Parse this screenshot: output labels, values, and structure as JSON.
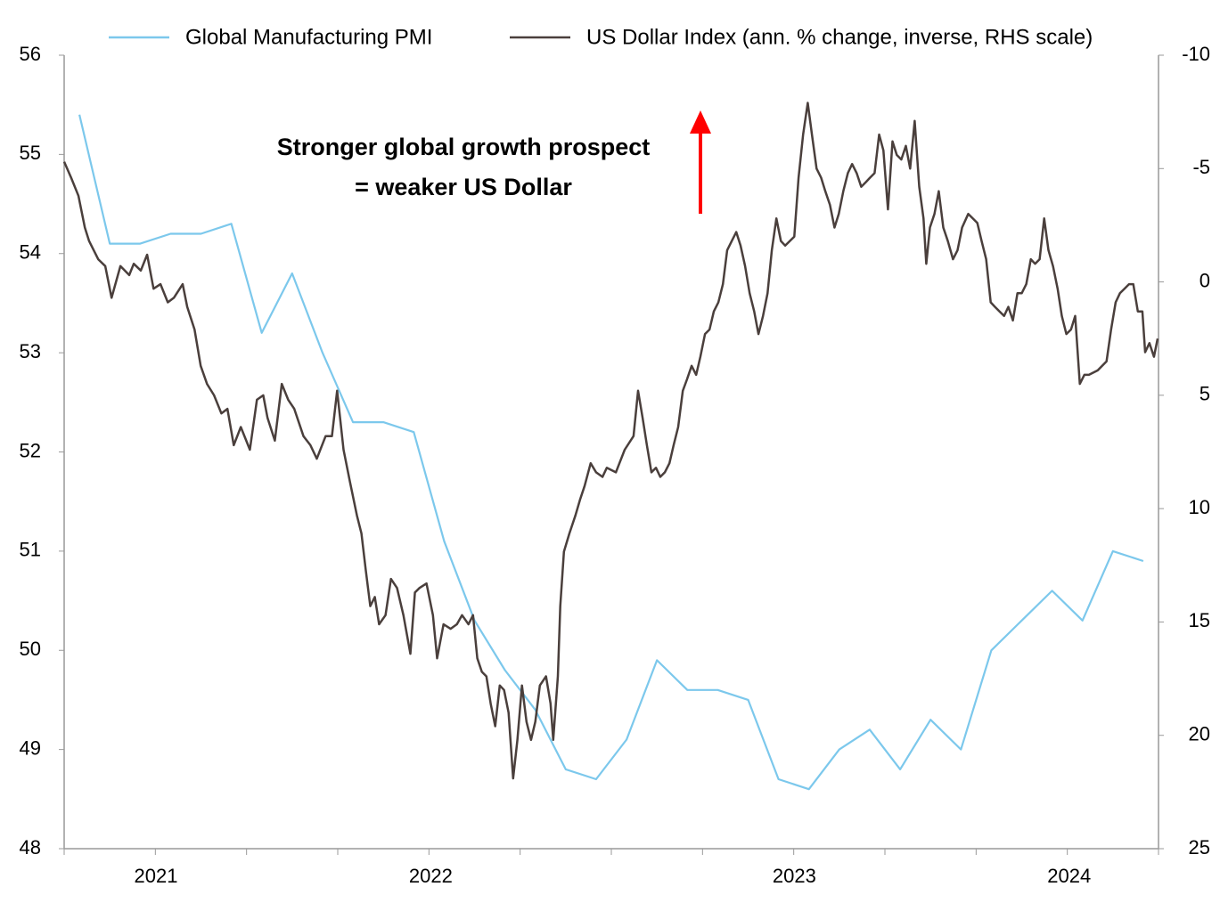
{
  "chart_data": {
    "type": "line",
    "annotations": [
      "Stronger global growth prospect",
      "= weaker US Dollar"
    ],
    "annotation_color": "#ff0000",
    "xlim": [
      0,
      36
    ],
    "xticks": [
      {
        "value": 3.02,
        "label": "2021"
      },
      {
        "value": 12.06,
        "label": "2022"
      },
      {
        "value": 24.02,
        "label": "2023"
      },
      {
        "value": 33.06,
        "label": "2024"
      }
    ],
    "xticks_minor": [
      0,
      3,
      6,
      9,
      12,
      15,
      18,
      21,
      24,
      27,
      30,
      33,
      36
    ],
    "ylim": [
      48,
      56
    ],
    "yticks": [
      48,
      49,
      50,
      51,
      52,
      53,
      54,
      55,
      56
    ],
    "y2lim": [
      25,
      -10
    ],
    "y2ticks": [
      -10,
      -5,
      0,
      5,
      10,
      15,
      20,
      25
    ],
    "legend": "top",
    "series": [
      {
        "name": "Global Manufacturing PMI",
        "color": "#7cc8ec",
        "x": [
          0.5,
          1.5,
          2.5,
          3.5,
          4.5,
          5.5,
          6.5,
          7.5,
          8.5,
          9.5,
          10.5,
          11.5,
          12.5,
          13.5,
          14.5,
          15.5,
          16.5,
          17.5,
          18.5,
          19.5,
          20.5,
          21.5,
          22.5,
          23.5,
          24.5,
          25.5,
          26.5,
          27.5,
          28.5,
          29.5,
          30.5,
          31.5,
          32.5,
          33.5,
          34.5,
          35.5
        ],
        "values": [
          55.4,
          54.1,
          54.1,
          54.2,
          54.2,
          54.3,
          53.2,
          53.8,
          53.0,
          52.3,
          52.3,
          52.2,
          51.1,
          50.3,
          49.8,
          49.4,
          48.8,
          48.7,
          49.1,
          49.9,
          49.6,
          49.6,
          49.5,
          48.7,
          48.6,
          49.0,
          49.2,
          48.8,
          49.3,
          49.0,
          50.0,
          50.3,
          50.6,
          50.3,
          51.0,
          50.9
        ]
      },
      {
        "name": "US Dollar Index (ann. % change, inverse, RHS scale)",
        "color": "#4a3f3c",
        "axis": "y2",
        "x": [
          0,
          0.23,
          0.47,
          0.68,
          0.82,
          1.12,
          1.35,
          1.56,
          1.85,
          2.14,
          2.29,
          2.52,
          2.73,
          2.94,
          3.17,
          3.41,
          3.61,
          3.9,
          4.05,
          4.29,
          4.49,
          4.7,
          4.93,
          5.17,
          5.37,
          5.58,
          5.81,
          6.11,
          6.34,
          6.55,
          6.69,
          6.93,
          7.16,
          7.37,
          7.57,
          7.87,
          8.1,
          8.31,
          8.6,
          8.81,
          8.98,
          9.19,
          9.4,
          9.63,
          9.78,
          9.92,
          10.07,
          10.22,
          10.36,
          10.57,
          10.75,
          10.95,
          11.16,
          11.39,
          11.54,
          11.69,
          11.92,
          12.13,
          12.27,
          12.48,
          12.71,
          12.92,
          13.09,
          13.3,
          13.45,
          13.59,
          13.74,
          13.89,
          14.03,
          14.18,
          14.33,
          14.47,
          14.62,
          14.77,
          14.91,
          15.06,
          15.21,
          15.36,
          15.5,
          15.65,
          15.85,
          16.0,
          16.09,
          16.24,
          16.32,
          16.44,
          16.62,
          16.82,
          16.97,
          17.12,
          17.32,
          17.5,
          17.71,
          17.85,
          18.15,
          18.44,
          18.73,
          18.88,
          19.03,
          19.17,
          19.32,
          19.47,
          19.61,
          19.76,
          19.91,
          20.05,
          20.2,
          20.35,
          20.49,
          20.64,
          20.79,
          20.93,
          21.08,
          21.23,
          21.37,
          21.52,
          21.67,
          21.81,
          21.96,
          22.11,
          22.25,
          22.4,
          22.55,
          22.7,
          22.84,
          22.99,
          23.14,
          23.28,
          23.43,
          23.58,
          23.72,
          23.87,
          24.02,
          24.16,
          24.31,
          24.46,
          24.6,
          24.75,
          24.9,
          25.04,
          25.19,
          25.34,
          25.48,
          25.63,
          25.78,
          25.92,
          26.07,
          26.22,
          26.37,
          26.51,
          26.66,
          26.81,
          26.95,
          27.1,
          27.25,
          27.39,
          27.54,
          27.69,
          27.83,
          27.98,
          28.13,
          28.27,
          28.36,
          28.48,
          28.63,
          28.77,
          28.92,
          29.07,
          29.24,
          29.39,
          29.54,
          29.74,
          29.89,
          30.04,
          30.18,
          30.33,
          30.48,
          30.62,
          30.77,
          30.92,
          31.06,
          31.21,
          31.36,
          31.5,
          31.65,
          31.8,
          31.94,
          32.09,
          32.24,
          32.38,
          32.53,
          32.68,
          32.82,
          32.97,
          33.12,
          33.26,
          33.41,
          33.56,
          33.71,
          34.0,
          34.29,
          34.44,
          34.59,
          34.73,
          34.88,
          35.03,
          35.17,
          35.32,
          35.47,
          35.56,
          35.7,
          35.85,
          35.97
        ],
        "values": [
          -5.3,
          -4.6,
          -3.8,
          -2.4,
          -1.8,
          -1.0,
          -0.7,
          0.7,
          -0.7,
          -0.3,
          -0.8,
          -0.5,
          -1.2,
          0.3,
          0.1,
          0.9,
          0.7,
          0.1,
          1.1,
          2.1,
          3.7,
          4.5,
          5.0,
          5.8,
          5.6,
          7.2,
          6.4,
          7.4,
          5.2,
          5.0,
          6.0,
          7.0,
          4.5,
          5.2,
          5.6,
          6.8,
          7.2,
          7.8,
          6.8,
          6.8,
          4.8,
          7.4,
          8.8,
          10.3,
          11.1,
          12.7,
          14.3,
          13.9,
          15.1,
          14.7,
          13.1,
          13.5,
          14.7,
          16.4,
          13.7,
          13.5,
          13.3,
          14.7,
          16.6,
          15.1,
          15.3,
          15.1,
          14.7,
          15.1,
          14.7,
          16.6,
          17.2,
          17.4,
          18.6,
          19.6,
          17.8,
          18.0,
          19.0,
          21.9,
          20.2,
          17.8,
          19.4,
          20.2,
          19.4,
          17.8,
          17.4,
          18.6,
          20.2,
          17.4,
          14.3,
          11.9,
          11.1,
          10.3,
          9.6,
          9.0,
          8.0,
          8.4,
          8.6,
          8.2,
          8.4,
          7.4,
          6.8,
          4.8,
          6.0,
          7.2,
          8.4,
          8.2,
          8.6,
          8.4,
          8.0,
          7.2,
          6.4,
          4.8,
          4.3,
          3.7,
          4.1,
          3.3,
          2.3,
          2.1,
          1.3,
          0.9,
          0.1,
          -1.4,
          -1.8,
          -2.2,
          -1.6,
          -0.7,
          0.5,
          1.3,
          2.3,
          1.5,
          0.5,
          -1.4,
          -2.8,
          -1.8,
          -1.6,
          -1.8,
          -2.0,
          -4.6,
          -6.5,
          -7.9,
          -6.5,
          -5.0,
          -4.6,
          -4.0,
          -3.4,
          -2.4,
          -3.0,
          -4.0,
          -4.8,
          -5.2,
          -4.8,
          -4.2,
          -4.4,
          -4.6,
          -4.8,
          -6.5,
          -5.8,
          -3.2,
          -6.2,
          -5.6,
          -5.4,
          -6.0,
          -5.0,
          -7.1,
          -4.2,
          -2.8,
          -0.8,
          -2.4,
          -3.0,
          -4.0,
          -2.4,
          -1.8,
          -1.0,
          -1.4,
          -2.4,
          -3.0,
          -2.8,
          -2.6,
          -1.8,
          -1.0,
          0.9,
          1.1,
          1.3,
          1.5,
          1.1,
          1.7,
          0.5,
          0.5,
          0.1,
          -1.0,
          -0.8,
          -1.0,
          -2.8,
          -1.4,
          -0.7,
          0.3,
          1.5,
          2.3,
          2.1,
          1.5,
          4.5,
          4.1,
          4.1,
          3.9,
          3.5,
          2.1,
          0.9,
          0.5,
          0.3,
          0.1,
          0.1,
          1.3,
          1.3,
          3.1,
          2.7,
          3.3,
          2.5
        ]
      }
    ]
  }
}
